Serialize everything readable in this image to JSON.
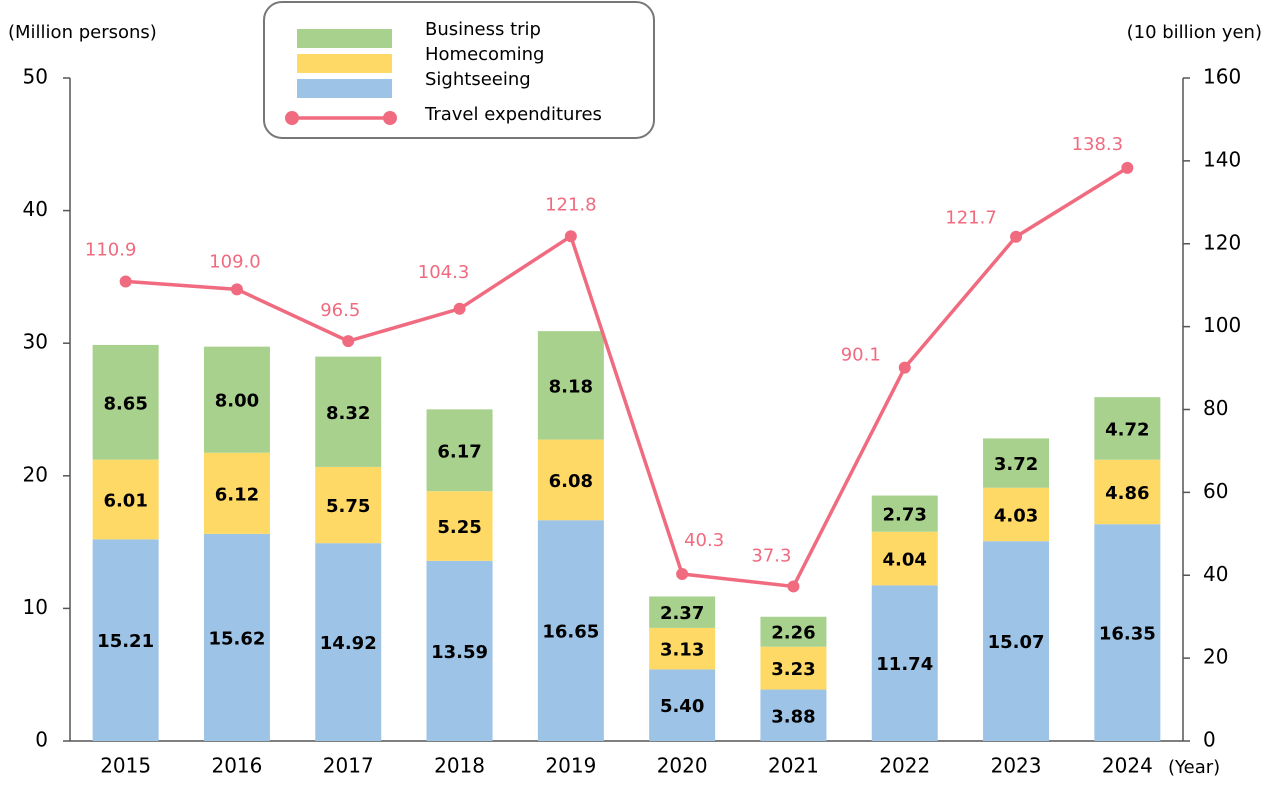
{
  "chart_data": {
    "type": "bar-line",
    "y_label": "(Million persons)",
    "y2_label": "(10 billion yen)",
    "x_label": "(Year)",
    "categories": [
      "2015",
      "2016",
      "2017",
      "2018",
      "2019",
      "2020",
      "2021",
      "2022",
      "2023",
      "2024"
    ],
    "series": [
      {
        "name": "Sightseeing",
        "color": "#9dc3e6",
        "type": "bar",
        "values": [
          15.21,
          15.62,
          14.92,
          13.59,
          16.65,
          5.4,
          3.88,
          11.74,
          15.07,
          16.35
        ],
        "value_labels": [
          "15.21",
          "15.62",
          "14.92",
          "13.59",
          "16.65",
          "5.40",
          "3.88",
          "11.74",
          "15.07",
          "16.35"
        ]
      },
      {
        "name": "Homecoming",
        "color": "#ffd966",
        "type": "bar",
        "values": [
          6.01,
          6.12,
          5.75,
          5.25,
          6.08,
          3.13,
          3.23,
          4.04,
          4.03,
          4.86
        ],
        "value_labels": [
          "6.01",
          "6.12",
          "5.75",
          "5.25",
          "6.08",
          "3.13",
          "3.23",
          "4.04",
          "4.03",
          "4.86"
        ]
      },
      {
        "name": "Business trip",
        "color": "#a9d18e",
        "type": "bar",
        "values": [
          8.65,
          8.0,
          8.32,
          6.17,
          8.18,
          2.37,
          2.26,
          2.73,
          3.72,
          4.72
        ],
        "value_labels": [
          "8.65",
          "8.00",
          "8.32",
          "6.17",
          "8.18",
          "2.37",
          "2.26",
          "2.73",
          "3.72",
          "4.72"
        ]
      },
      {
        "name": "Travel expenditures",
        "color": "#f06b7f",
        "type": "line",
        "axis": "y2",
        "values": [
          110.9,
          109.0,
          96.5,
          104.3,
          121.8,
          40.3,
          37.3,
          90.1,
          121.7,
          138.3
        ],
        "value_labels": [
          "110.9",
          "109.0",
          "96.5",
          "104.3",
          "121.8",
          "40.3",
          "37.3",
          "90.1",
          "121.7",
          "138.3"
        ]
      }
    ],
    "ylim": [
      0,
      50
    ],
    "yticks": [
      0,
      10,
      20,
      30,
      40,
      50
    ],
    "y2lim": [
      0,
      160
    ],
    "y2ticks": [
      0,
      20,
      40,
      60,
      80,
      100,
      120,
      140,
      160
    ],
    "legend": "top"
  }
}
